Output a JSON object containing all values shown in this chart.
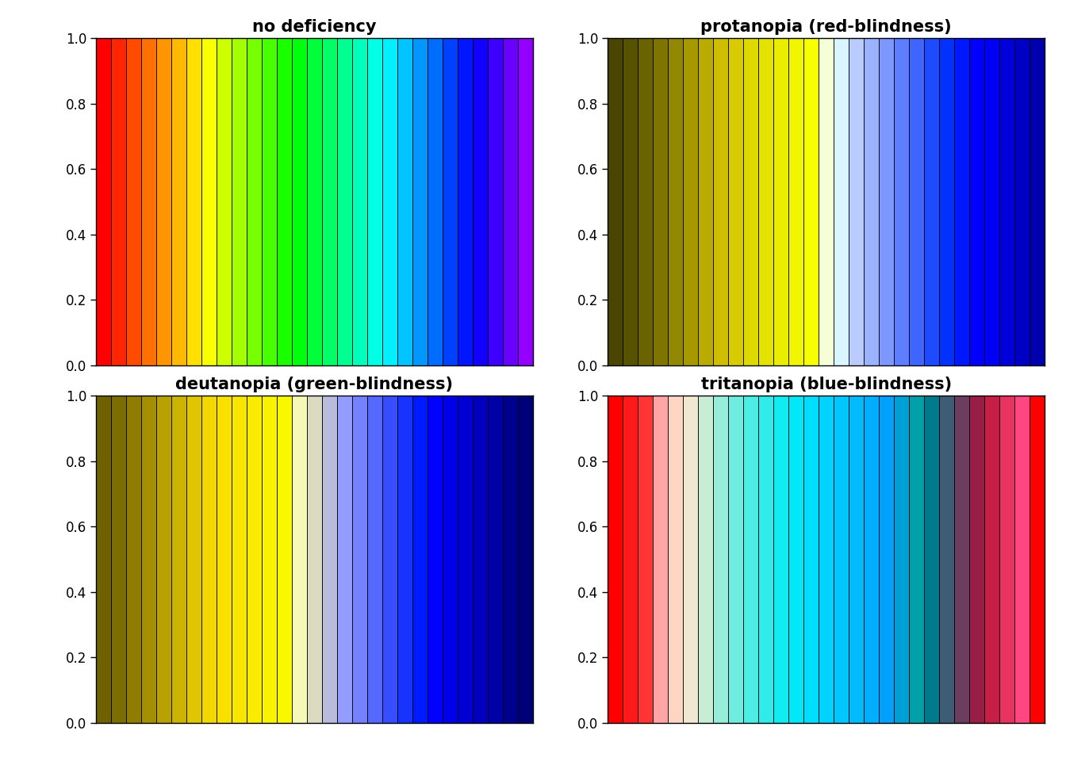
{
  "titles": [
    "no deficiency",
    "protanopia (red-blindness)",
    "deutanopia (green-blindness)",
    "tritanopia (blue-blindness)"
  ],
  "n_bars": 29,
  "normal_colors": [
    "#FF0000",
    "#FF2500",
    "#FF4B00",
    "#FF7000",
    "#FF9500",
    "#FFBA00",
    "#FFE000",
    "#F9FF00",
    "#CCFF00",
    "#A3FF00",
    "#75FF00",
    "#47FF00",
    "#1AFF00",
    "#00FF0D",
    "#00FF3A",
    "#00FF66",
    "#00FF91",
    "#00FFBC",
    "#00FFE5",
    "#00F0FF",
    "#00C4FF",
    "#0098FF",
    "#006DFF",
    "#0041FF",
    "#0016FF",
    "#1200FF",
    "#3D00FF",
    "#6900FF",
    "#9400FF"
  ],
  "protanopia_colors": [
    "#4A4500",
    "#575200",
    "#6A6300",
    "#7E7500",
    "#928700",
    "#A69900",
    "#BAAB00",
    "#CEBD00",
    "#D8CB00",
    "#DEDA00",
    "#E4E300",
    "#EAED00",
    "#F1F600",
    "#F7FF00",
    "#F5FFD7",
    "#D9F5FF",
    "#BACBFF",
    "#9BB2FF",
    "#7C98FF",
    "#5D7EFF",
    "#3E65FF",
    "#1F4BFF",
    "#0031FF",
    "#0018FF",
    "#0000FF",
    "#0000F2",
    "#0000DC",
    "#0000C5",
    "#0000AE"
  ],
  "deutanopia_colors": [
    "#706100",
    "#7C6D00",
    "#907D00",
    "#A48F00",
    "#B8A100",
    "#CBB300",
    "#DFC600",
    "#F2D800",
    "#F9E000",
    "#F9E600",
    "#F9EC00",
    "#F9F200",
    "#F9F800",
    "#F5F9B5",
    "#DADAC0",
    "#B8BCDA",
    "#939DFF",
    "#7482FF",
    "#5568FF",
    "#364EFF",
    "#1734FF",
    "#001AFF",
    "#0001FF",
    "#0000EC",
    "#0000D5",
    "#0000BE",
    "#0000A7",
    "#000090",
    "#000079"
  ],
  "tritanopia_colors": [
    "#FF0000",
    "#FF1A1A",
    "#FF3434",
    "#FFA5A5",
    "#FFD5C4",
    "#F0E8D0",
    "#C8EDD5",
    "#96EDDA",
    "#6CEDE0",
    "#4DEDE6",
    "#2EECEC",
    "#10ECF2",
    "#00E8F8",
    "#00DEFF",
    "#00D3FF",
    "#00C8FF",
    "#00BCFF",
    "#00AEFF",
    "#00A0FF",
    "#00A0D4",
    "#00A0AA",
    "#007A8C",
    "#3D5C75",
    "#6B3D5E",
    "#991E47",
    "#C71E47",
    "#E83260",
    "#FF4680",
    "#FF0000"
  ],
  "yticks": [
    0.0,
    0.2,
    0.4,
    0.6,
    0.8,
    1.0
  ],
  "background_color": "#FFFFFF",
  "title_fontsize": 15,
  "tick_fontsize": 12
}
